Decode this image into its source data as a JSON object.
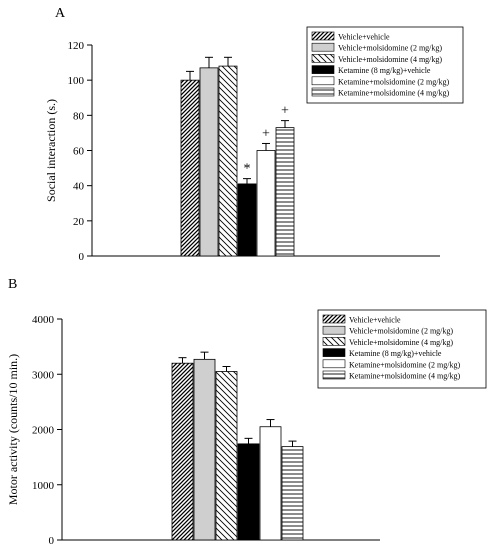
{
  "chart_data": [
    {
      "panel": "A",
      "type": "bar",
      "ylabel": "Social interaction (s.)",
      "xlabel": "",
      "ylim": [
        0,
        120
      ],
      "yticks": [
        0,
        20,
        40,
        60,
        80,
        100,
        120
      ],
      "legend_position": "top-right",
      "series": [
        {
          "name": "Vehicle+vehicle",
          "value": 100,
          "error": 5,
          "pattern": "dense-diag",
          "annotation": ""
        },
        {
          "name": "Vehicle+molsidomine (2 mg/kg)",
          "value": 107,
          "error": 6,
          "pattern": "light-gray",
          "annotation": ""
        },
        {
          "name": "Vehicle+molsidomine (4 mg/kg)",
          "value": 108,
          "error": 5,
          "pattern": "sparse-diag",
          "annotation": ""
        },
        {
          "name": "Ketamine (8 mg/kg)+vehicle",
          "value": 41,
          "error": 3,
          "pattern": "black",
          "annotation": "*"
        },
        {
          "name": "Ketamine+molsidomine (2 mg/kg)",
          "value": 60,
          "error": 4,
          "pattern": "white",
          "annotation": "+"
        },
        {
          "name": "Ketamine+molsidomine (4 mg/kg)",
          "value": 73,
          "error": 4,
          "pattern": "horizontal",
          "annotation": "+"
        }
      ]
    },
    {
      "panel": "B",
      "type": "bar",
      "ylabel": "Motor activity (counts/10 min.)",
      "xlabel": "",
      "ylim": [
        0,
        4000
      ],
      "yticks": [
        0,
        1000,
        2000,
        3000,
        4000
      ],
      "legend_position": "top-right",
      "series": [
        {
          "name": "Vehicle+vehicle",
          "value": 3200,
          "error": 100,
          "pattern": "dense-diag",
          "annotation": ""
        },
        {
          "name": "Vehicle+molsidomine (2 mg/kg)",
          "value": 3270,
          "error": 130,
          "pattern": "light-gray",
          "annotation": ""
        },
        {
          "name": "Vehicle+molsidomine (4 mg/kg)",
          "value": 3050,
          "error": 90,
          "pattern": "sparse-diag",
          "annotation": ""
        },
        {
          "name": "Ketamine (8 mg/kg)+vehicle",
          "value": 1740,
          "error": 100,
          "pattern": "black",
          "annotation": ""
        },
        {
          "name": "Ketamine+molsidomine (2 mg/kg)",
          "value": 2050,
          "error": 130,
          "pattern": "white",
          "annotation": ""
        },
        {
          "name": "Ketamine+molsidomine (4 mg/kg)",
          "value": 1690,
          "error": 100,
          "pattern": "horizontal",
          "annotation": ""
        }
      ]
    }
  ]
}
